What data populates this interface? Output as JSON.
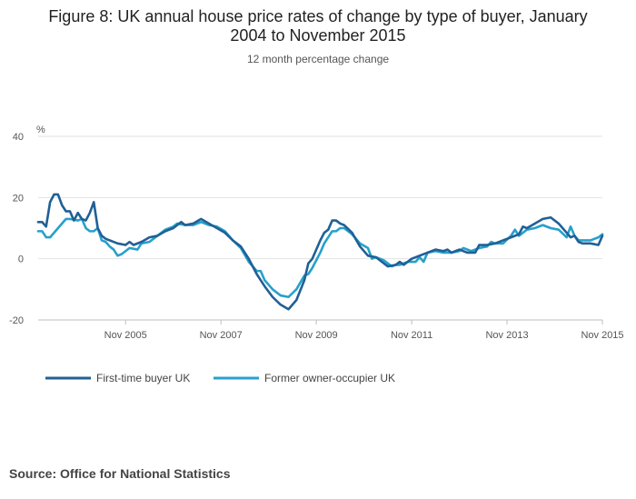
{
  "header": {
    "title_line1": "Figure 8: UK annual house price rates of change by type of buyer, January",
    "title_line2": "2004 to November 2015",
    "subtitle": "12 month percentage change"
  },
  "footer": {
    "source": "Source: Office for National Statistics"
  },
  "chart_data": {
    "type": "line",
    "title": "Figure 8: UK annual house price rates of change by type of buyer, January 2004 to November 2015",
    "subtitle": "12 month percentage change",
    "ylabel": "%",
    "ylim": [
      -20,
      40
    ],
    "yticks": [
      -20,
      0,
      20,
      40
    ],
    "xlim": [
      "Jan 2004",
      "Nov 2015"
    ],
    "xticks": [
      "Nov 2005",
      "Nov 2007",
      "Nov 2009",
      "Nov 2011",
      "Nov 2013",
      "Nov 2015"
    ],
    "grid": true,
    "legend": "bottom-left",
    "colors": {
      "first_time": "#206095",
      "former_owner": "#27A0CC"
    },
    "series": [
      {
        "name": "First-time buyer UK",
        "color": "#206095",
        "points": [
          [
            "Jan 2004",
            12
          ],
          [
            "Feb 2004",
            12
          ],
          [
            "Mar 2004",
            10.5
          ],
          [
            "Apr 2004",
            18.5
          ],
          [
            "May 2004",
            21
          ],
          [
            "Jun 2004",
            21
          ],
          [
            "Jul 2004",
            17.5
          ],
          [
            "Aug 2004",
            15.5
          ],
          [
            "Sep 2004",
            15.5
          ],
          [
            "Oct 2004",
            12.5
          ],
          [
            "Nov 2004",
            15
          ],
          [
            "Dec 2004",
            13
          ],
          [
            "Jan 2005",
            12.5
          ],
          [
            "Feb 2005",
            15
          ],
          [
            "Mar 2005",
            18.5
          ],
          [
            "Apr 2005",
            10
          ],
          [
            "May 2005",
            7.5
          ],
          [
            "Jun 2005",
            6.5
          ],
          [
            "Jul 2005",
            6
          ],
          [
            "Sep 2005",
            5
          ],
          [
            "Nov 2005",
            4.5
          ],
          [
            "Dec 2005",
            5.5
          ],
          [
            "Jan 2006",
            4.5
          ],
          [
            "Mar 2006",
            5.5
          ],
          [
            "May 2006",
            7
          ],
          [
            "Jul 2006",
            7.5
          ],
          [
            "Sep 2006",
            9
          ],
          [
            "Nov 2006",
            10
          ],
          [
            "Jan 2007",
            12
          ],
          [
            "Feb 2007",
            11
          ],
          [
            "Apr 2007",
            11.5
          ],
          [
            "Jun 2007",
            13
          ],
          [
            "Aug 2007",
            11.5
          ],
          [
            "Oct 2007",
            10
          ],
          [
            "Dec 2007",
            8.5
          ],
          [
            "Feb 2008",
            6
          ],
          [
            "Apr 2008",
            4
          ],
          [
            "Jun 2008",
            0
          ],
          [
            "Aug 2008",
            -5
          ],
          [
            "Oct 2008",
            -9
          ],
          [
            "Dec 2008",
            -12.5
          ],
          [
            "Feb 2009",
            -15
          ],
          [
            "Apr 2009",
            -16.5
          ],
          [
            "Jun 2009",
            -13.5
          ],
          [
            "Aug 2009",
            -7
          ],
          [
            "Sep 2009",
            -1.5
          ],
          [
            "Oct 2009",
            0
          ],
          [
            "Dec 2009",
            6
          ],
          [
            "Jan 2010",
            8.5
          ],
          [
            "Feb 2010",
            9.5
          ],
          [
            "Mar 2010",
            12.5
          ],
          [
            "Apr 2010",
            12.5
          ],
          [
            "May 2010",
            11.5
          ],
          [
            "Jun 2010",
            11
          ],
          [
            "Aug 2010",
            8.5
          ],
          [
            "Oct 2010",
            4
          ],
          [
            "Dec 2010",
            1
          ],
          [
            "Feb 2011",
            0.5
          ],
          [
            "Mar 2011",
            -0.5
          ],
          [
            "May 2011",
            -2.5
          ],
          [
            "Jul 2011",
            -2
          ],
          [
            "Aug 2011",
            -1
          ],
          [
            "Sep 2011",
            -2
          ],
          [
            "Nov 2011",
            0
          ],
          [
            "Jan 2012",
            1
          ],
          [
            "Mar 2012",
            2
          ],
          [
            "May 2012",
            3
          ],
          [
            "Jul 2012",
            2.5
          ],
          [
            "Aug 2012",
            3
          ],
          [
            "Sep 2012",
            2
          ],
          [
            "Nov 2012",
            3
          ],
          [
            "Jan 2013",
            2
          ],
          [
            "Mar 2013",
            2
          ],
          [
            "Apr 2013",
            4.5
          ],
          [
            "Jun 2013",
            4.5
          ],
          [
            "Aug 2013",
            5
          ],
          [
            "Oct 2013",
            6
          ],
          [
            "Dec 2013",
            7
          ],
          [
            "Feb 2014",
            8
          ],
          [
            "Mar 2014",
            10.5
          ],
          [
            "Apr 2014",
            10
          ],
          [
            "Jun 2014",
            11.5
          ],
          [
            "Aug 2014",
            13
          ],
          [
            "Oct 2014",
            13.5
          ],
          [
            "Dec 2014",
            11.5
          ],
          [
            "Feb 2015",
            8.5
          ],
          [
            "Mar 2015",
            7
          ],
          [
            "Apr 2015",
            7.5
          ],
          [
            "May 2015",
            5.5
          ],
          [
            "Jun 2015",
            5
          ],
          [
            "Aug 2015",
            5
          ],
          [
            "Oct 2015",
            4.5
          ],
          [
            "Nov 2015",
            7.5
          ]
        ]
      },
      {
        "name": "Former owner-occupier UK",
        "color": "#27A0CC",
        "points": [
          [
            "Jan 2004",
            9
          ],
          [
            "Feb 2004",
            9
          ],
          [
            "Mar 2004",
            7
          ],
          [
            "Apr 2004",
            7
          ],
          [
            "Jun 2004",
            10
          ],
          [
            "Aug 2004",
            13
          ],
          [
            "Sep 2004",
            13
          ],
          [
            "Nov 2004",
            12.5
          ],
          [
            "Dec 2004",
            13
          ],
          [
            "Jan 2005",
            10
          ],
          [
            "Feb 2005",
            9
          ],
          [
            "Mar 2005",
            9
          ],
          [
            "Apr 2005",
            10
          ],
          [
            "May 2005",
            6
          ],
          [
            "Jun 2005",
            5.5
          ],
          [
            "Jul 2005",
            4
          ],
          [
            "Aug 2005",
            3
          ],
          [
            "Sep 2005",
            1
          ],
          [
            "Oct 2005",
            1.5
          ],
          [
            "Dec 2005",
            3.5
          ],
          [
            "Feb 2006",
            3
          ],
          [
            "Mar 2006",
            5
          ],
          [
            "May 2006",
            5.5
          ],
          [
            "Jul 2006",
            7.5
          ],
          [
            "Sep 2006",
            9.5
          ],
          [
            "Nov 2006",
            10.5
          ],
          [
            "Dec 2006",
            11.5
          ],
          [
            "Feb 2007",
            11
          ],
          [
            "Apr 2007",
            11
          ],
          [
            "Jun 2007",
            12
          ],
          [
            "Aug 2007",
            11
          ],
          [
            "Oct 2007",
            10.5
          ],
          [
            "Dec 2007",
            9
          ],
          [
            "Feb 2008",
            6
          ],
          [
            "Apr 2008",
            3.5
          ],
          [
            "Jun 2008",
            -1
          ],
          [
            "Aug 2008",
            -4
          ],
          [
            "Sep 2008",
            -4
          ],
          [
            "Oct 2008",
            -7
          ],
          [
            "Dec 2008",
            -10
          ],
          [
            "Feb 2009",
            -12
          ],
          [
            "Apr 2009",
            -12.5
          ],
          [
            "Jun 2009",
            -10
          ],
          [
            "Aug 2009",
            -5.5
          ],
          [
            "Sep 2009",
            -5
          ],
          [
            "Oct 2009",
            -3
          ],
          [
            "Dec 2009",
            2
          ],
          [
            "Jan 2010",
            5
          ],
          [
            "Feb 2010",
            7
          ],
          [
            "Mar 2010",
            9
          ],
          [
            "Apr 2010",
            9
          ],
          [
            "May 2010",
            10
          ],
          [
            "Jun 2010",
            10
          ],
          [
            "Aug 2010",
            8
          ],
          [
            "Oct 2010",
            5
          ],
          [
            "Dec 2010",
            3.5
          ],
          [
            "Jan 2011",
            0
          ],
          [
            "Feb 2011",
            0.5
          ],
          [
            "Apr 2011",
            -0.5
          ],
          [
            "Jun 2011",
            -2.5
          ],
          [
            "Jul 2011",
            -2
          ],
          [
            "Aug 2011",
            -2
          ],
          [
            "Oct 2011",
            -1
          ],
          [
            "Dec 2011",
            -1
          ],
          [
            "Jan 2012",
            0.5
          ],
          [
            "Feb 2012",
            -1
          ],
          [
            "Mar 2012",
            2
          ],
          [
            "May 2012",
            2.5
          ],
          [
            "Jul 2012",
            2
          ],
          [
            "Aug 2012",
            2
          ],
          [
            "Sep 2012",
            2
          ],
          [
            "Nov 2012",
            2.5
          ],
          [
            "Dec 2012",
            3.5
          ],
          [
            "Feb 2013",
            2.5
          ],
          [
            "Apr 2013",
            3.5
          ],
          [
            "Jun 2013",
            4
          ],
          [
            "Jul 2013",
            5.5
          ],
          [
            "Aug 2013",
            5
          ],
          [
            "Oct 2013",
            5
          ],
          [
            "Dec 2013",
            7.5
          ],
          [
            "Jan 2014",
            9.5
          ],
          [
            "Feb 2014",
            7.5
          ],
          [
            "Apr 2014",
            9.5
          ],
          [
            "Jun 2014",
            10
          ],
          [
            "Aug 2014",
            11
          ],
          [
            "Oct 2014",
            10
          ],
          [
            "Dec 2014",
            9.5
          ],
          [
            "Feb 2015",
            7
          ],
          [
            "Mar 2015",
            10.5
          ],
          [
            "Apr 2015",
            7.5
          ],
          [
            "May 2015",
            6
          ],
          [
            "Jun 2015",
            6
          ],
          [
            "Aug 2015",
            6
          ],
          [
            "Oct 2015",
            7
          ],
          [
            "Nov 2015",
            8
          ]
        ]
      }
    ]
  }
}
